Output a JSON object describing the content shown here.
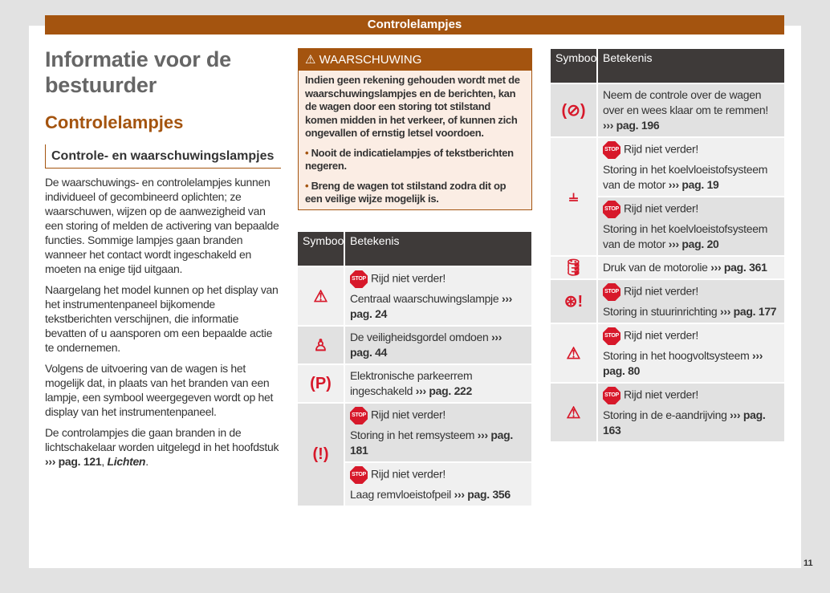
{
  "header": {
    "band_title": "Controlelampjes"
  },
  "left": {
    "title": "Informatie voor de bestuurder",
    "section": "Controlelampjes",
    "subsection": "Controle- en waarschuwingslampjes",
    "paragraphs": [
      "De waarschuwings- en controlelampjes kunnen individueel of gecombineerd oplichten; ze waarschuwen, wijzen op de aanwezigheid van een storing of melden de activering van bepaalde functies. Sommige lampjes gaan branden wanneer het contact wordt ingeschakeld en moeten na enige tijd uitgaan.",
      "Naargelang het model kunnen op het display van het instrumentenpaneel bijkomende tekstberichten verschijnen, die informatie bevatten of u aansporen om een bepaalde actie te ondernemen.",
      "Volgens de uitvoering van de wagen is het mogelijk dat, in plaats van het branden van een lampje, een symbool weergegeven wordt op het display van het instrumentenpaneel."
    ],
    "last_paragraph": {
      "text": "De controlampjes die gaan branden in de lichtschakelaar worden uitgelegd in het hoofdstuk",
      "ref": "››› pag. 121",
      "sep": ", ",
      "link": "Lichten",
      "end": "."
    }
  },
  "warning": {
    "title": "WAARSCHUWING",
    "body": "Indien geen rekening gehouden wordt met de waarschuwingslampjes en de berichten, kan de wagen door een storing tot stilstand komen midden in het verkeer, of kunnen zich ongevallen of ernstig letsel voordoen.",
    "bullets": [
      "Nooit de indicatielampjes of tekstberichten negeren.",
      "Breng de wagen tot stilstand zodra dit op een veilige wijze mogelijk is."
    ]
  },
  "table_headers": {
    "symbol": "Symbool",
    "meaning": "Betekenis"
  },
  "stop_text": "Rijd niet verder!",
  "stop_icon_text": "STOP",
  "table1": [
    {
      "icon": "warning-triangle-icon",
      "glyph": "⚠",
      "cells": [
        {
          "stop": true,
          "text": "Centraal waarschuwingslampje",
          "ref": "››› pag. 24"
        }
      ]
    },
    {
      "icon": "seatbelt-icon",
      "glyph": "♙",
      "cells": [
        {
          "stop": false,
          "text": "De veiligheidsgordel omdoen",
          "ref": "››› pag. 44"
        }
      ]
    },
    {
      "icon": "parking-brake-icon",
      "glyph": "(P)",
      "cells": [
        {
          "stop": false,
          "text": "Elektronische parkeerrem ingeschakeld",
          "ref": "››› pag. 222"
        }
      ]
    },
    {
      "icon": "brake-system-icon",
      "glyph": "(!)",
      "cells": [
        {
          "stop": true,
          "text": "Storing in het remsysteem",
          "ref": "››› pag. 181"
        },
        {
          "stop": true,
          "text": "Laag remvloeistofpeil",
          "ref": "››› pag. 356"
        }
      ]
    }
  ],
  "table2": [
    {
      "icon": "take-control-brake-icon",
      "glyph": "(⊘)",
      "cells": [
        {
          "stop": false,
          "text": "Neem de controle over de wagen over en wees klaar om te remmen!",
          "ref": "››› pag. 196"
        }
      ]
    },
    {
      "icon": "coolant-temperature-icon",
      "glyph": "⫨",
      "cells": [
        {
          "stop": true,
          "text": "Storing in het koelvloeistofsysteem van de motor",
          "ref": "››› pag. 19"
        },
        {
          "stop": true,
          "text": "Storing in het koelvloeistofsysteem van de motor",
          "ref": "››› pag. 20"
        }
      ]
    },
    {
      "icon": "oil-can-icon",
      "glyph": "🛢",
      "cells": [
        {
          "stop": false,
          "text": "Druk van de motorolie",
          "ref": "››› pag. 361"
        }
      ]
    },
    {
      "icon": "steering-wheel-warning-icon",
      "glyph": "⊛!",
      "cells": [
        {
          "stop": true,
          "text": "Storing in stuurinrichting",
          "ref": "››› pag. 177"
        }
      ]
    },
    {
      "icon": "car-warning-icon",
      "glyph": "⚠",
      "cells": [
        {
          "stop": true,
          "text": "Storing in het hoogvoltsysteem",
          "ref": "››› pag. 80"
        }
      ]
    },
    {
      "icon": "car-warning-icon",
      "glyph": "⚠",
      "cells": [
        {
          "stop": true,
          "text": "Storing in de e-aandrijving",
          "ref": "››› pag. 163"
        }
      ]
    }
  ],
  "page_number": "11"
}
